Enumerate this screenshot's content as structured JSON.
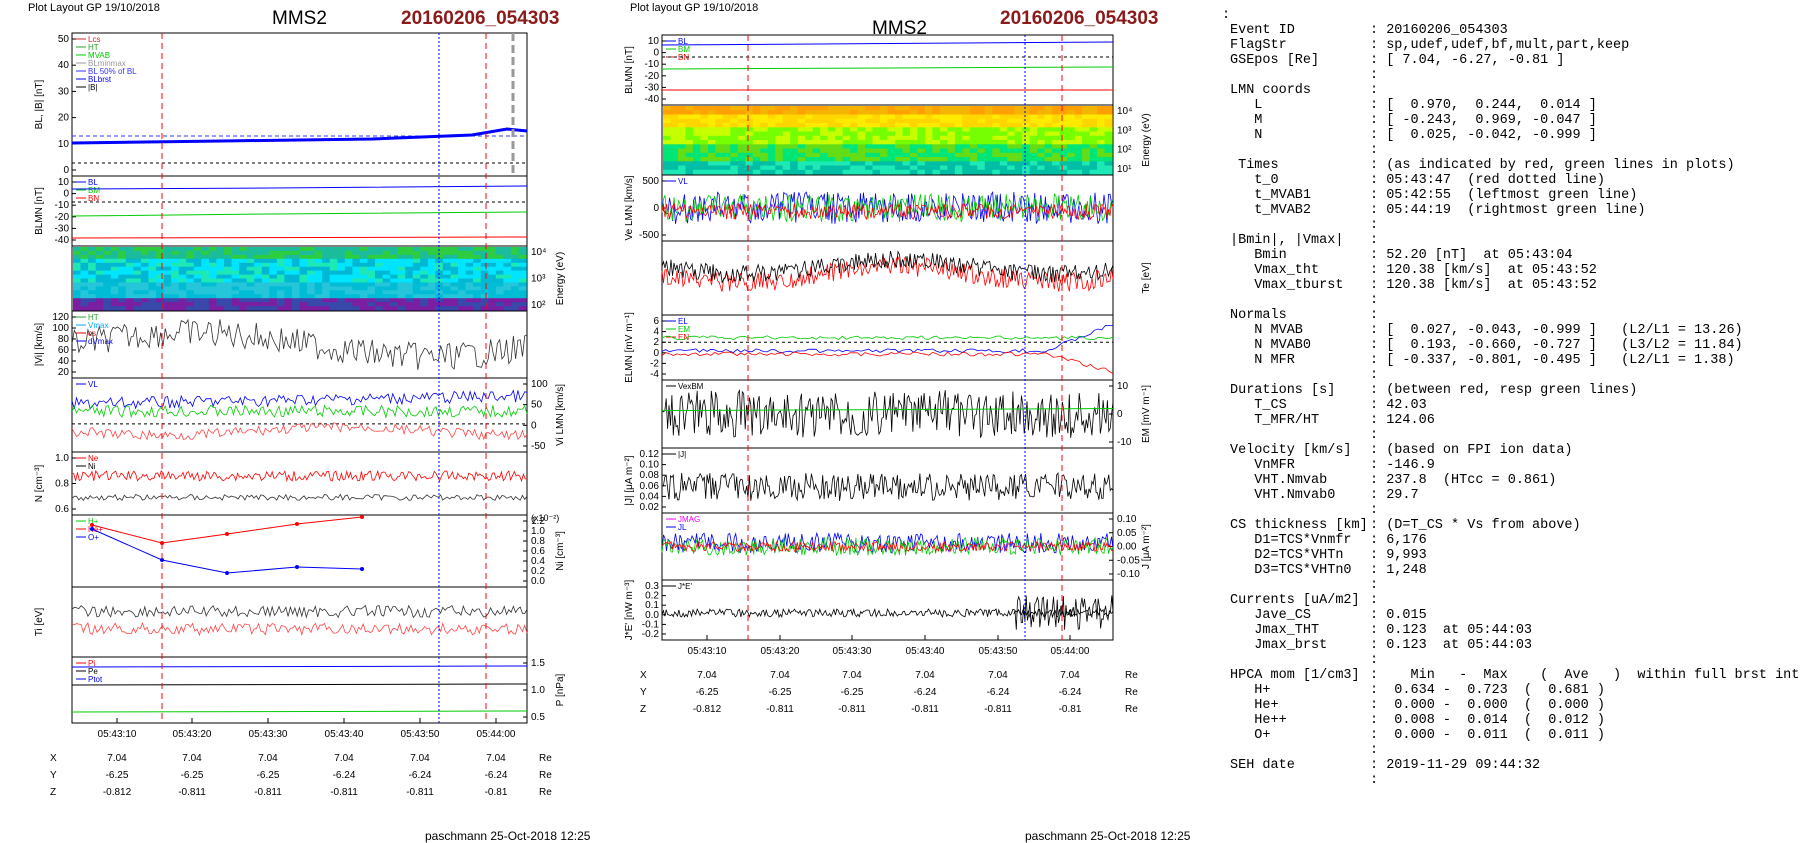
{
  "left": {
    "header": "Plot Layout GP 19/10/2018",
    "mms": "MMS2",
    "event": "20160206_054303",
    "footer": "paschmann 25-Oct-2018 12:25",
    "panels": [
      {
        "ylabel": "B_L, |B| [nT]",
        "ticks": [
          "50",
          "40",
          "30",
          "20",
          "10",
          "0"
        ],
        "side": "left",
        "legend": [
          "L_cs",
          "HT",
          "MVAB",
          "BLminmax",
          "BL 50% of BL",
          "BL_brst",
          "|B|"
        ],
        "legend_colors": [
          "#d62728",
          "#2ca02c",
          "#00cc00",
          "#999999",
          "#3333ff",
          "#0000ff",
          "#000000"
        ]
      },
      {
        "ylabel": "B_LMN [nT]",
        "ticks": [
          "10",
          "0",
          "-10",
          "-20",
          "-30",
          "-40"
        ],
        "side": "left",
        "legend": [
          "B_L",
          "B_M",
          "B_N"
        ],
        "legend_colors": [
          "#0000ff",
          "#00cc00",
          "#ff0000"
        ]
      },
      {
        "ylabel": "Energy (eV)",
        "ticks": [
          "10⁴",
          "10³",
          "10²"
        ],
        "side": "right",
        "legend": [],
        "legend_colors": []
      },
      {
        "ylabel": "|V_i| [km/s]",
        "ticks": [
          "120",
          "100",
          "80",
          "60",
          "40",
          "20"
        ],
        "side": "left",
        "legend": [
          "HT",
          "Vmax",
          "cs",
          "dVmax"
        ],
        "legend_colors": [
          "#2ca02c",
          "#00aaff",
          "#ff0000",
          "#0000ff"
        ]
      },
      {
        "ylabel": "V_i LMN [km/s]",
        "ticks": [
          "100",
          "50",
          "0",
          "-50"
        ],
        "side": "right",
        "legend": [
          "V_L"
        ],
        "legend_colors": [
          "#0000ff"
        ]
      },
      {
        "ylabel": "N [cm⁻³]",
        "ticks": [
          "1.0",
          "0.8",
          "0.6"
        ],
        "side": "left",
        "legend": [
          "Ne",
          "Ni"
        ],
        "legend_colors": [
          "#ff0000",
          "#000000"
        ]
      },
      {
        "ylabel": "N_i [cm⁻³]",
        "ticks": [
          "1.2",
          "1.0",
          "0.8",
          "0.6",
          "0.4",
          "0.2",
          "0.0"
        ],
        "side": "right",
        "legend": [
          "H+",
          "He+",
          "O+"
        ],
        "legend_colors": [
          "#00cc00",
          "#ff0000",
          "#0000ff"
        ],
        "scale": "(x10⁻²)"
      },
      {
        "ylabel": "T_i [eV]",
        "ticks": [],
        "side": "left",
        "legend": [],
        "legend_colors": []
      },
      {
        "ylabel": "P [nPa]",
        "ticks": [
          "1.5",
          "1.0",
          "0.5"
        ],
        "side": "right",
        "legend": [
          "P_i",
          "P_e",
          "P_tot"
        ],
        "legend_colors": [
          "#ff0000",
          "#000000",
          "#0000ff"
        ]
      }
    ],
    "xticks": [
      "05:43:10",
      "05:43:20",
      "05:43:30",
      "05:43:40",
      "05:43:50",
      "05:44:00"
    ],
    "coords": {
      "X": [
        "7.04",
        "7.04",
        "7.04",
        "7.04",
        "7.04",
        "7.04"
      ],
      "Y": [
        "-6.25",
        "-6.25",
        "-6.25",
        "-6.24",
        "-6.24",
        "-6.24"
      ],
      "Z": [
        "-0.812",
        "-0.811",
        "-0.811",
        "-0.811",
        "-0.811",
        "-0.81"
      ],
      "unit": "Re"
    }
  },
  "right": {
    "header": "Plot layout GP 19/10/2018",
    "mms": "MMS2",
    "event": "20160206_054303",
    "footer": "paschmann 25-Oct-2018 12:25",
    "panels": [
      {
        "ylabel": "B_LMN [nT]",
        "ticks": [
          "10",
          "0",
          "-10",
          "-20",
          "-30",
          "-40"
        ],
        "side": "left",
        "legend": [
          "B_L",
          "B_M",
          "B_N"
        ],
        "legend_colors": [
          "#0000ff",
          "#00cc00",
          "#ff0000"
        ]
      },
      {
        "ylabel": "Energy (eV)",
        "ticks": [
          "10⁴",
          "10³",
          "10²",
          "10¹"
        ],
        "side": "right",
        "legend": [],
        "legend_colors": []
      },
      {
        "ylabel": "V_e LMN [km/s]",
        "ticks": [
          "500",
          "0",
          "-500"
        ],
        "side": "left",
        "legend": [
          "V_L"
        ],
        "legend_colors": [
          "#0000ff"
        ]
      },
      {
        "ylabel": "T_e [eV]",
        "ticks": [],
        "side": "right",
        "legend": [],
        "legend_colors": []
      },
      {
        "ylabel": "E_LMN [mV m⁻¹]",
        "ticks": [
          "6",
          "4",
          "2",
          "0",
          "-2",
          "-4"
        ],
        "side": "left",
        "legend": [
          "E_L",
          "E_M",
          "E_N"
        ],
        "legend_colors": [
          "#0000ff",
          "#00cc00",
          "#ff0000"
        ]
      },
      {
        "ylabel": "E_M [mV m⁻¹]",
        "ticks": [
          "10",
          "0",
          "-10"
        ],
        "side": "right",
        "legend": [
          "VexB_M"
        ],
        "legend_colors": [
          "#000000"
        ]
      },
      {
        "ylabel": "|J| [μA m⁻²]",
        "ticks": [
          "0.12",
          "0.10",
          "0.08",
          "0.06",
          "0.04",
          "0.02"
        ],
        "side": "left",
        "legend": [
          "|J|"
        ],
        "legend_colors": [
          "#000000"
        ]
      },
      {
        "ylabel": "J [μA m⁻²]",
        "ticks": [
          "0.10",
          "0.05",
          "0.00",
          "-0.05",
          "-0.10"
        ],
        "side": "right",
        "legend": [
          "J_MAG",
          "J_L"
        ],
        "legend_colors": [
          "#ff00ff",
          "#0000ff"
        ]
      },
      {
        "ylabel": "J*E' [nW m⁻³]",
        "ticks": [
          "0.3",
          "0.2",
          "0.1",
          "0.0",
          "-0.1",
          "-0.2"
        ],
        "side": "left",
        "legend": [
          "J*E'"
        ],
        "legend_colors": [
          "#000000"
        ]
      }
    ],
    "xticks": [
      "05:43:10",
      "05:43:20",
      "05:43:30",
      "05:43:40",
      "05:43:50",
      "05:44:00"
    ],
    "coords": {
      "X": [
        "7.04",
        "7.04",
        "7.04",
        "7.04",
        "7.04",
        "7.04"
      ],
      "Y": [
        "-6.25",
        "-6.25",
        "-6.25",
        "-6.24",
        "-6.24",
        "-6.24"
      ],
      "Z": [
        "-0.812",
        "-0.811",
        "-0.811",
        "-0.811",
        "-0.811",
        "-0.81"
      ],
      "unit": "Re"
    }
  },
  "info": [
    [
      ":",
      ""
    ],
    [
      "Event ID",
      ": 20160206_054303"
    ],
    [
      "FlagStr",
      ": sp,udef,udef,bf,mult,part,keep"
    ],
    [
      "GSEpos [Re]",
      ": [ 7.04, -6.27, -0.81 ]"
    ],
    [
      "",
      ":"
    ],
    [
      "LMN coords",
      ":"
    ],
    [
      "   L",
      ": [  0.970,  0.244,  0.014 ]"
    ],
    [
      "   M",
      ": [ -0.243,  0.969, -0.047 ]"
    ],
    [
      "   N",
      ": [  0.025, -0.042, -0.999 ]"
    ],
    [
      "",
      ":"
    ],
    [
      " Times",
      ": (as indicated by red, green lines in plots)"
    ],
    [
      "   t_0",
      ": 05:43:47  (red dotted line)"
    ],
    [
      "   t_MVAB1",
      ": 05:42:55  (leftmost green line)"
    ],
    [
      "   t_MVAB2",
      ": 05:44:19  (rightmost green line)"
    ],
    [
      "",
      ":"
    ],
    [
      "|Bmin|, |Vmax|",
      ":"
    ],
    [
      "   Bmin",
      ": 52.20 [nT]  at 05:43:04"
    ],
    [
      "   Vmax_tht",
      ": 120.38 [km/s]  at 05:43:52"
    ],
    [
      "   Vmax_tburst",
      ": 120.38 [km/s]  at 05:43:52"
    ],
    [
      "",
      ":"
    ],
    [
      "Normals",
      ":"
    ],
    [
      "   N MVAB",
      ": [  0.027, -0.043, -0.999 ]   (L2/L1 = 13.26)"
    ],
    [
      "   N MVAB0",
      ": [  0.193, -0.660, -0.727 ]   (L3/L2 = 11.84)"
    ],
    [
      "   N MFR",
      ": [ -0.337, -0.801, -0.495 ]   (L2/L1 = 1.38)"
    ],
    [
      "",
      ":"
    ],
    [
      "Durations [s]",
      ": (between red, resp green lines)"
    ],
    [
      "   T_CS",
      ": 42.03"
    ],
    [
      "   T_MFR/HT",
      ": 124.06"
    ],
    [
      "",
      ":"
    ],
    [
      "Velocity [km/s]",
      ": (based on FPI ion data)"
    ],
    [
      "   VnMFR",
      ": -146.9"
    ],
    [
      "   VHT.Nmvab",
      ": 237.8  (HTcc = 0.861)"
    ],
    [
      "   VHT.Nmvab0",
      ": 29.7"
    ],
    [
      "",
      ":"
    ],
    [
      "CS thickness [km]",
      ": (D=T_CS * Vs from above)"
    ],
    [
      "   D1=TCS*Vnmfr",
      ": 6,176"
    ],
    [
      "   D2=TCS*VHTn",
      ": 9,993"
    ],
    [
      "   D3=TCS*VHTn0",
      ": 1,248"
    ],
    [
      "",
      ":"
    ],
    [
      "Currents [uA/m2]",
      ":"
    ],
    [
      "   Jave_CS",
      ": 0.015"
    ],
    [
      "   Jmax_THT",
      ": 0.123  at 05:44:03"
    ],
    [
      "   Jmax_brst",
      ": 0.123  at 05:44:03"
    ],
    [
      "",
      ":"
    ],
    [
      "HPCA mom [1/cm3]",
      ":    Min   -  Max    (  Ave   )  within full brst int"
    ],
    [
      "   H+",
      ":  0.634 -  0.723  (  0.681 )"
    ],
    [
      "   He+",
      ":  0.000 -  0.000  (  0.000 )"
    ],
    [
      "   He++",
      ":  0.008 -  0.014  (  0.012 )"
    ],
    [
      "   O+",
      ":  0.000 -  0.011  (  0.011 )"
    ],
    [
      "",
      ":"
    ],
    [
      "SEH date",
      ": 2019-11-29 09:44:32"
    ],
    [
      "",
      ":"
    ]
  ],
  "chart_data": [
    {
      "type": "line",
      "title": "MMS2 20160206_054303 (left)",
      "x_range": [
        "05:43:05",
        "05:44:02"
      ],
      "panels": [
        "B_L, |B| [nT]",
        "B_LMN [nT]",
        "Energy (eV)",
        "|V_i| [km/s]",
        "V_i LMN [km/s]",
        "N [cm⁻³]",
        "N_i [cm⁻³]",
        "T_i [eV]",
        "P [nPa]"
      ]
    },
    {
      "type": "line",
      "title": "MMS2 20160206_054303 (right)",
      "x_range": [
        "05:43:05",
        "05:44:02"
      ],
      "panels": [
        "B_LMN [nT]",
        "Energy (eV)",
        "V_e LMN [km/s]",
        "T_e [eV]",
        "E_LMN [mV m⁻¹]",
        "E_M [mV m⁻¹]",
        "|J| [μA m⁻²]",
        "J [μA m⁻²]",
        "J*E' [nW m⁻³]"
      ]
    }
  ]
}
